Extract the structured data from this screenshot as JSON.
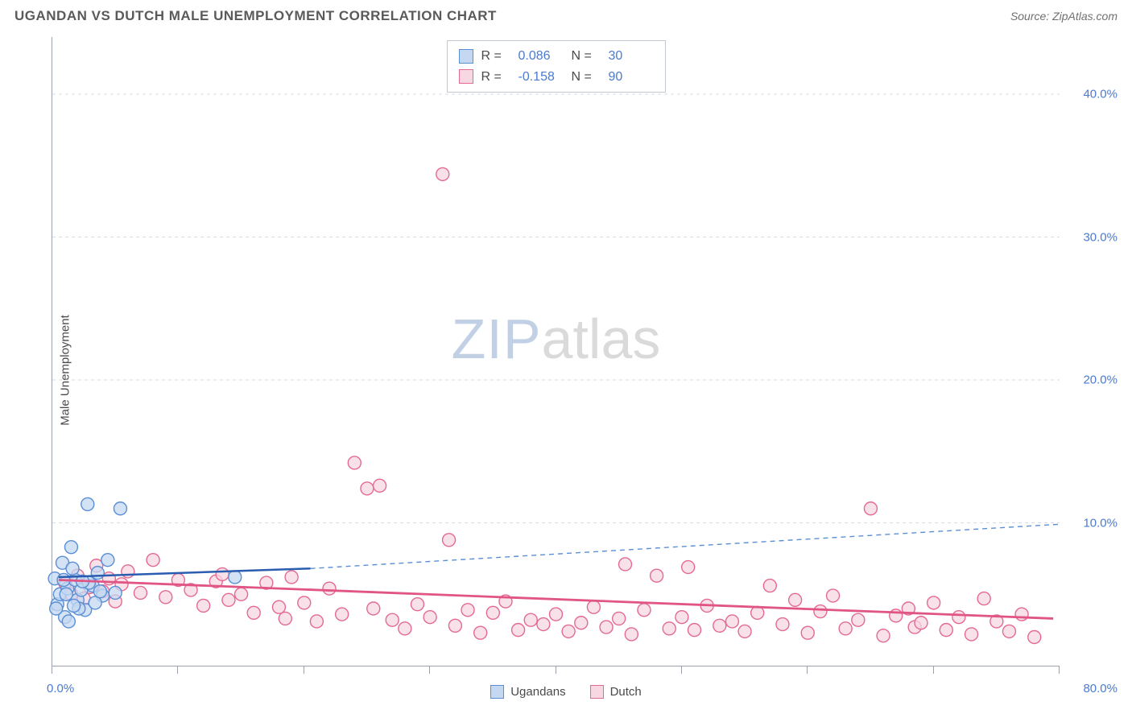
{
  "title": "UGANDAN VS DUTCH MALE UNEMPLOYMENT CORRELATION CHART",
  "source": "Source: ZipAtlas.com",
  "y_axis_label": "Male Unemployment",
  "watermark": {
    "part1": "ZIP",
    "part2": "atlas"
  },
  "chart": {
    "type": "scatter-correlation",
    "background_color": "#ffffff",
    "grid_color": "#d6dbe3",
    "grid_dash": "4 4",
    "axis_color": "#9aa1ab",
    "axis_label_color": "#4a7bd0",
    "text_color": "#4a4a4a",
    "xlim": [
      0,
      80
    ],
    "ylim": [
      0,
      44
    ],
    "x_ticks_at": [
      0,
      10,
      20,
      30,
      40,
      50,
      60,
      70,
      80
    ],
    "x_tick_labels_shown": {
      "0": "0.0%",
      "80": "80.0%"
    },
    "y_ticks_at": [
      10,
      20,
      30,
      40
    ],
    "y_tick_labels": {
      "10": "10.0%",
      "20": "20.0%",
      "30": "30.0%",
      "40": "40.0%"
    },
    "marker_radius": 8,
    "marker_stroke_width": 1.4,
    "series": [
      {
        "key": "ugandans",
        "label": "Ugandans",
        "fill": "#c4d8f2",
        "stroke": "#5a8fd6",
        "r_value": "0.086",
        "n_value": "30",
        "points": [
          [
            0.2,
            6.1
          ],
          [
            0.4,
            4.3
          ],
          [
            0.6,
            5.0
          ],
          [
            0.8,
            7.2
          ],
          [
            1.0,
            3.4
          ],
          [
            1.2,
            5.4
          ],
          [
            1.5,
            8.3
          ],
          [
            1.8,
            6.0
          ],
          [
            2.0,
            4.6
          ],
          [
            2.3,
            5.3
          ],
          [
            2.6,
            3.9
          ],
          [
            2.8,
            11.3
          ],
          [
            3.2,
            5.6
          ],
          [
            3.6,
            6.5
          ],
          [
            4.0,
            4.9
          ],
          [
            4.4,
            7.4
          ],
          [
            5.0,
            5.1
          ],
          [
            5.4,
            11.0
          ],
          [
            1.3,
            3.1
          ],
          [
            1.6,
            6.8
          ],
          [
            2.1,
            4.0
          ],
          [
            2.9,
            5.8
          ],
          [
            3.4,
            4.4
          ],
          [
            0.3,
            4.0
          ],
          [
            0.9,
            6.0
          ],
          [
            1.1,
            5.0
          ],
          [
            1.7,
            4.2
          ],
          [
            2.4,
            5.9
          ],
          [
            3.8,
            5.2
          ],
          [
            14.5,
            6.2
          ]
        ],
        "trend": {
          "solid": {
            "x1": 0.5,
            "y1": 6.2,
            "x2": 20.5,
            "y2": 6.8,
            "width": 2.5,
            "color": "#2a5db0"
          },
          "dashed": {
            "x1": 20.5,
            "y1": 6.8,
            "x2": 80,
            "y2": 9.9,
            "width": 1.4,
            "color": "#5a8fd6",
            "dash": "6 5"
          }
        }
      },
      {
        "key": "dutch",
        "label": "Dutch",
        "fill": "#f7d7e1",
        "stroke": "#e46a93",
        "r_value": "-0.158",
        "n_value": "90",
        "points": [
          [
            1,
            5.8
          ],
          [
            1.5,
            5.0
          ],
          [
            2,
            6.3
          ],
          [
            2.5,
            4.7
          ],
          [
            3,
            5.5
          ],
          [
            3.5,
            7.0
          ],
          [
            4,
            5.2
          ],
          [
            4.5,
            6.1
          ],
          [
            5,
            4.5
          ],
          [
            5.5,
            5.7
          ],
          [
            6,
            6.6
          ],
          [
            7,
            5.1
          ],
          [
            8,
            7.4
          ],
          [
            9,
            4.8
          ],
          [
            10,
            6.0
          ],
          [
            11,
            5.3
          ],
          [
            12,
            4.2
          ],
          [
            13,
            5.9
          ],
          [
            13.5,
            6.4
          ],
          [
            14,
            4.6
          ],
          [
            15,
            5.0
          ],
          [
            16,
            3.7
          ],
          [
            17,
            5.8
          ],
          [
            18,
            4.1
          ],
          [
            18.5,
            3.3
          ],
          [
            19,
            6.2
          ],
          [
            20,
            4.4
          ],
          [
            21,
            3.1
          ],
          [
            22,
            5.4
          ],
          [
            23,
            3.6
          ],
          [
            24,
            14.2
          ],
          [
            25,
            12.4
          ],
          [
            25.5,
            4.0
          ],
          [
            26,
            12.6
          ],
          [
            27,
            3.2
          ],
          [
            28,
            2.6
          ],
          [
            29,
            4.3
          ],
          [
            30,
            3.4
          ],
          [
            31.5,
            8.8
          ],
          [
            31,
            34.4
          ],
          [
            32,
            2.8
          ],
          [
            33,
            3.9
          ],
          [
            34,
            2.3
          ],
          [
            35,
            3.7
          ],
          [
            36,
            4.5
          ],
          [
            37,
            2.5
          ],
          [
            38,
            3.2
          ],
          [
            39,
            2.9
          ],
          [
            40,
            3.6
          ],
          [
            41,
            2.4
          ],
          [
            42,
            3.0
          ],
          [
            43,
            4.1
          ],
          [
            44,
            2.7
          ],
          [
            45,
            3.3
          ],
          [
            45.5,
            7.1
          ],
          [
            46,
            2.2
          ],
          [
            47,
            3.9
          ],
          [
            48,
            6.3
          ],
          [
            49,
            2.6
          ],
          [
            50,
            3.4
          ],
          [
            50.5,
            6.9
          ],
          [
            51,
            2.5
          ],
          [
            52,
            4.2
          ],
          [
            53,
            2.8
          ],
          [
            54,
            3.1
          ],
          [
            55,
            2.4
          ],
          [
            56,
            3.7
          ],
          [
            57,
            5.6
          ],
          [
            58,
            2.9
          ],
          [
            59,
            4.6
          ],
          [
            60,
            2.3
          ],
          [
            61,
            3.8
          ],
          [
            62,
            4.9
          ],
          [
            63,
            2.6
          ],
          [
            64,
            3.2
          ],
          [
            65,
            11.0
          ],
          [
            66,
            2.1
          ],
          [
            67,
            3.5
          ],
          [
            68,
            4.0
          ],
          [
            68.5,
            2.7
          ],
          [
            69,
            3.0
          ],
          [
            70,
            4.4
          ],
          [
            71,
            2.5
          ],
          [
            72,
            3.4
          ],
          [
            73,
            2.2
          ],
          [
            74,
            4.7
          ],
          [
            75,
            3.1
          ],
          [
            76,
            2.4
          ],
          [
            77,
            3.6
          ],
          [
            78,
            2.0
          ]
        ],
        "trend": {
          "solid": {
            "x1": 0.5,
            "y1": 6.0,
            "x2": 79.5,
            "y2": 3.3,
            "width": 2.8,
            "color": "#e15584"
          }
        }
      }
    ]
  },
  "legend_top": {
    "r_label": "R  =",
    "n_label": "N  ="
  },
  "legend_bottom_labels": {
    "ugandans": "Ugandans",
    "dutch": "Dutch"
  }
}
